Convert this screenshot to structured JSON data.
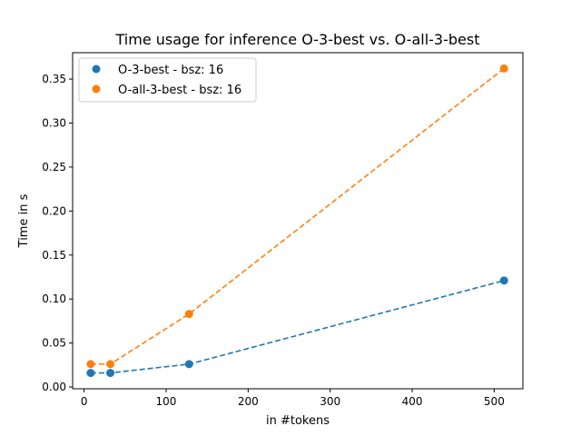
{
  "chart_data": {
    "type": "line",
    "title": "Time usage for inference O-3-best vs. O-all-3-best",
    "xlabel": "in #tokens",
    "ylabel": "Time in s",
    "xlim": [
      -14,
      535
    ],
    "ylim": [
      -0.002,
      0.38
    ],
    "xticks": [
      0,
      100,
      200,
      300,
      400,
      500
    ],
    "xtick_labels": [
      "0",
      "100",
      "200",
      "300",
      "400",
      "500"
    ],
    "yticks": [
      0.0,
      0.05,
      0.1,
      0.15,
      0.2,
      0.25,
      0.3,
      0.35
    ],
    "ytick_labels": [
      "0.00",
      "0.05",
      "0.10",
      "0.15",
      "0.20",
      "0.25",
      "0.30",
      "0.35"
    ],
    "grid": false,
    "legend_position": "top-left",
    "series": [
      {
        "name": "O-3-best - bsz: 16",
        "color": "#1f77b4",
        "line_style": "dashed",
        "x": [
          8,
          32,
          128,
          512
        ],
        "y": [
          0.016,
          0.016,
          0.026,
          0.121
        ]
      },
      {
        "name": "O-all-3-best - bsz: 16",
        "color": "#ff7f0e",
        "line_style": "dashed",
        "x": [
          8,
          32,
          128,
          512
        ],
        "y": [
          0.026,
          0.026,
          0.083,
          0.362
        ]
      }
    ]
  }
}
